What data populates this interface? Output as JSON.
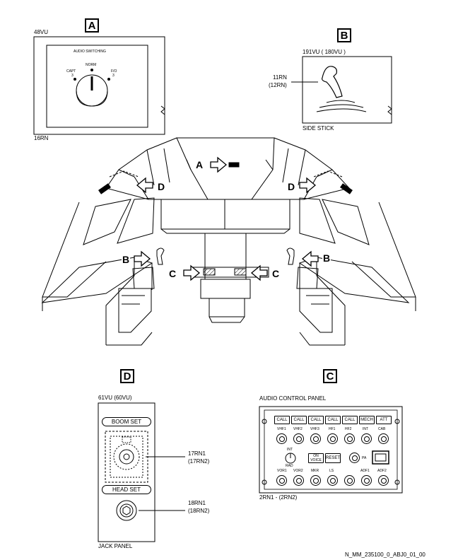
{
  "callouts": {
    "A": "A",
    "B": "B",
    "C": "C",
    "D": "D"
  },
  "panel_a": {
    "vu": "48VU",
    "title": "AUDIO SWITCHING",
    "norm": "NORM",
    "capt": "CAPT",
    "capt_num": "3",
    "fo": "F/O",
    "fo_num": "3",
    "ref": "16RN"
  },
  "panel_b": {
    "vu": "191VU ( 180VU )",
    "ref1": "11RN",
    "ref2": "(12RN)",
    "caption": "SIDE STICK"
  },
  "cockpit": {
    "arrow_labels": [
      "A",
      "D",
      "D",
      "B",
      "B",
      "C",
      "C"
    ]
  },
  "panel_d": {
    "vu": "61VU (60VU)",
    "boom": "BOOM SET",
    "head": "HEAD SET",
    "ref1a": "17RN1",
    "ref1b": "(17RN2)",
    "ref2a": "18RN1",
    "ref2b": "(18RN2)",
    "caption": "JACK PANEL"
  },
  "panel_c": {
    "caption": "AUDIO CONTROL PANEL",
    "call_keys": [
      "CALL",
      "CALL",
      "CALL",
      "CALL",
      "CALL",
      "MECH",
      "ATT"
    ],
    "row1": [
      "VHF1",
      "VHF2",
      "VHF3",
      "HF1",
      "HF2",
      "INT",
      "CAB"
    ],
    "int_label": "INT",
    "rad_label": "RAD",
    "voice": "ON VOICE",
    "reset": "RESET",
    "pa": "PA",
    "row3": [
      "VOR1",
      "VOR2",
      "MKR",
      "LS",
      "ADF1",
      "ADF2"
    ],
    "ref": "2RN1 - (2RN2)"
  },
  "footer_ref": "N_MM_235100_0_ABJ0_01_00"
}
